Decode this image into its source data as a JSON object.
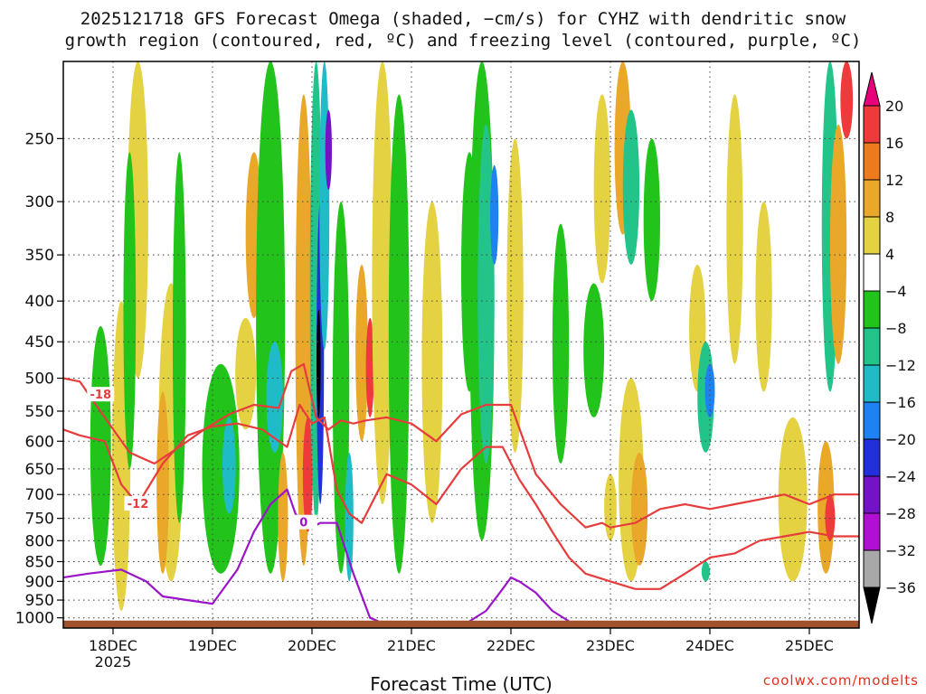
{
  "chart_data": {
    "type": "heatmap",
    "title_line1": "2025121718 GFS Forecast Omega (shaded, −cm/s) for CYHZ with dendritic snow",
    "title_line2": "growth region (contoured, red, ºC) and freezing level (contoured, purple, ºC)",
    "xlabel": "Forecast Time (UTC)",
    "credit": "coolwx.com/modelts",
    "y_axis_unit": "hPa",
    "y_log_scale": true,
    "ylim": [
      1030,
      200
    ],
    "y_ticks": [
      250,
      300,
      350,
      400,
      450,
      500,
      550,
      600,
      650,
      700,
      750,
      800,
      850,
      900,
      950,
      1000
    ],
    "y_tick_labels": [
      "250",
      "300",
      "350",
      "400",
      "450",
      "500",
      "550",
      "600",
      "650",
      "700",
      "750",
      "800",
      "850",
      "900",
      "950",
      "1000"
    ],
    "xlim_hours": [
      -6,
      186
    ],
    "x_ticks": [
      {
        "hour": 6,
        "label": "18DEC",
        "sublabel": "2025"
      },
      {
        "hour": 30,
        "label": "19DEC",
        "sublabel": ""
      },
      {
        "hour": 54,
        "label": "20DEC",
        "sublabel": ""
      },
      {
        "hour": 78,
        "label": "21DEC",
        "sublabel": ""
      },
      {
        "hour": 102,
        "label": "22DEC",
        "sublabel": ""
      },
      {
        "hour": 126,
        "label": "23DEC",
        "sublabel": ""
      },
      {
        "hour": 150,
        "label": "24DEC",
        "sublabel": ""
      },
      {
        "hour": 174,
        "label": "25DEC",
        "sublabel": ""
      }
    ],
    "grid": true,
    "colorbar": {
      "labels": [
        "20",
        "16",
        "12",
        "8",
        "4",
        "−4",
        "−8",
        "−12",
        "−16",
        "−20",
        "−24",
        "−28",
        "−32",
        "−36"
      ],
      "bins": [
        {
          "range": "> 20",
          "color": "#e8007a"
        },
        {
          "range": "16 to 20",
          "color": "#ee3a3a"
        },
        {
          "range": "12 to 16",
          "color": "#ee7a1e"
        },
        {
          "range": "8 to 12",
          "color": "#eaa82a"
        },
        {
          "range": "4 to 8",
          "color": "#e5d242"
        },
        {
          "range": "-4 to 4",
          "color": "#ffffff"
        },
        {
          "range": "-8 to -4",
          "color": "#22c41c"
        },
        {
          "range": "-12 to -8",
          "color": "#22c48a"
        },
        {
          "range": "-16 to -12",
          "color": "#1fbcc8"
        },
        {
          "range": "-20 to -16",
          "color": "#1e82f2"
        },
        {
          "range": "-24 to -20",
          "color": "#2230dc"
        },
        {
          "range": "-28 to -24",
          "color": "#7412c8"
        },
        {
          "range": "-32 to -28",
          "color": "#b20fd4"
        },
        {
          "range": "-36 to -32",
          "color": "#a8a8a8"
        },
        {
          "range": "< -36",
          "color": "#000000"
        }
      ]
    },
    "omega_regions": [
      {
        "hour": 8,
        "p_top": 400,
        "p_bot": 980,
        "hw": 2.2,
        "value": 6
      },
      {
        "hour": 12,
        "p_top": 200,
        "p_bot": 500,
        "hw": 2.5,
        "value": 5
      },
      {
        "hour": 3,
        "p_top": 430,
        "p_bot": 860,
        "hw": 2.5,
        "value": -7
      },
      {
        "hour": 10,
        "p_top": 260,
        "p_bot": 650,
        "hw": 1.5,
        "value": -6
      },
      {
        "hour": 20,
        "p_top": 380,
        "p_bot": 900,
        "hw": 3.0,
        "value": 8
      },
      {
        "hour": 18,
        "p_top": 520,
        "p_bot": 880,
        "hw": 1.5,
        "value": 10
      },
      {
        "hour": 22,
        "p_top": 260,
        "p_bot": 760,
        "hw": 1.6,
        "value": -8
      },
      {
        "hour": 32,
        "p_top": 480,
        "p_bot": 880,
        "hw": 4.5,
        "value": -8
      },
      {
        "hour": 34,
        "p_top": 560,
        "p_bot": 740,
        "hw": 1.6,
        "value": -13
      },
      {
        "hour": 40,
        "p_top": 260,
        "p_bot": 420,
        "hw": 2.0,
        "value": 10
      },
      {
        "hour": 38,
        "p_top": 420,
        "p_bot": 580,
        "hw": 2.5,
        "value": 6
      },
      {
        "hour": 44,
        "p_top": 200,
        "p_bot": 880,
        "hw": 3.5,
        "value": -7
      },
      {
        "hour": 45,
        "p_top": 450,
        "p_bot": 620,
        "hw": 2.0,
        "value": -14
      },
      {
        "hour": 47,
        "p_top": 620,
        "p_bot": 900,
        "hw": 1.2,
        "value": 10
      },
      {
        "hour": 52,
        "p_top": 220,
        "p_bot": 860,
        "hw": 2.0,
        "value": 9
      },
      {
        "hour": 53,
        "p_top": 560,
        "p_bot": 780,
        "hw": 1.2,
        "value": 18
      },
      {
        "hour": 55,
        "p_top": 200,
        "p_bot": 760,
        "hw": 1.5,
        "value": -10
      },
      {
        "hour": 56,
        "p_top": 300,
        "p_bot": 720,
        "hw": 0.9,
        "value": -22
      },
      {
        "hour": 55.6,
        "p_top": 410,
        "p_bot": 560,
        "hw": 0.5,
        "value": -40
      },
      {
        "hour": 57,
        "p_top": 200,
        "p_bot": 460,
        "hw": 1.2,
        "value": -14
      },
      {
        "hour": 58,
        "p_top": 230,
        "p_bot": 290,
        "hw": 0.8,
        "value": -26
      },
      {
        "hour": 61,
        "p_top": 300,
        "p_bot": 880,
        "hw": 2.0,
        "value": -8
      },
      {
        "hour": 63,
        "p_top": 620,
        "p_bot": 900,
        "hw": 1.0,
        "value": -14
      },
      {
        "hour": 66,
        "p_top": 360,
        "p_bot": 600,
        "hw": 1.5,
        "value": 12
      },
      {
        "hour": 68,
        "p_top": 420,
        "p_bot": 560,
        "hw": 1.0,
        "value": 18
      },
      {
        "hour": 71,
        "p_top": 200,
        "p_bot": 720,
        "hw": 2.5,
        "value": 6
      },
      {
        "hour": 75,
        "p_top": 220,
        "p_bot": 880,
        "hw": 2.5,
        "value": -7
      },
      {
        "hour": 83,
        "p_top": 300,
        "p_bot": 760,
        "hw": 2.5,
        "value": 5
      },
      {
        "hour": 92,
        "p_top": 260,
        "p_bot": 520,
        "hw": 2.0,
        "value": -7
      },
      {
        "hour": 95,
        "p_top": 200,
        "p_bot": 800,
        "hw": 3.0,
        "value": -8
      },
      {
        "hour": 96,
        "p_top": 240,
        "p_bot": 640,
        "hw": 2.0,
        "value": -12
      },
      {
        "hour": 98,
        "p_top": 270,
        "p_bot": 360,
        "hw": 1.0,
        "value": -18
      },
      {
        "hour": 103,
        "p_top": 250,
        "p_bot": 620,
        "hw": 2.0,
        "value": 5
      },
      {
        "hour": 114,
        "p_top": 320,
        "p_bot": 640,
        "hw": 2.0,
        "value": -6
      },
      {
        "hour": 122,
        "p_top": 380,
        "p_bot": 560,
        "hw": 2.5,
        "value": -6
      },
      {
        "hour": 124,
        "p_top": 220,
        "p_bot": 380,
        "hw": 2.0,
        "value": 5
      },
      {
        "hour": 126,
        "p_top": 660,
        "p_bot": 800,
        "hw": 1.5,
        "value": 5
      },
      {
        "hour": 129,
        "p_top": 200,
        "p_bot": 330,
        "hw": 2.0,
        "value": 12
      },
      {
        "hour": 131,
        "p_top": 230,
        "p_bot": 360,
        "hw": 2.0,
        "value": -12
      },
      {
        "hour": 131,
        "p_top": 500,
        "p_bot": 900,
        "hw": 3.0,
        "value": 5
      },
      {
        "hour": 133,
        "p_top": 620,
        "p_bot": 860,
        "hw": 2.0,
        "value": 10
      },
      {
        "hour": 136,
        "p_top": 250,
        "p_bot": 400,
        "hw": 2.0,
        "value": -6
      },
      {
        "hour": 147,
        "p_top": 360,
        "p_bot": 520,
        "hw": 2.0,
        "value": 5
      },
      {
        "hour": 149,
        "p_top": 450,
        "p_bot": 620,
        "hw": 2.0,
        "value": -10
      },
      {
        "hour": 150,
        "p_top": 480,
        "p_bot": 560,
        "hw": 1.2,
        "value": -17
      },
      {
        "hour": 149,
        "p_top": 850,
        "p_bot": 900,
        "hw": 1.0,
        "value": -12
      },
      {
        "hour": 156,
        "p_top": 220,
        "p_bot": 480,
        "hw": 2.0,
        "value": 5
      },
      {
        "hour": 163,
        "p_top": 300,
        "p_bot": 520,
        "hw": 2.0,
        "value": 5
      },
      {
        "hour": 170,
        "p_top": 560,
        "p_bot": 900,
        "hw": 3.5,
        "value": 5
      },
      {
        "hour": 178,
        "p_top": 600,
        "p_bot": 880,
        "hw": 2.0,
        "value": 10
      },
      {
        "hour": 179,
        "p_top": 700,
        "p_bot": 800,
        "hw": 1.2,
        "value": 17
      },
      {
        "hour": 179,
        "p_top": 200,
        "p_bot": 520,
        "hw": 2.0,
        "value": -10
      },
      {
        "hour": 181,
        "p_top": 240,
        "p_bot": 480,
        "hw": 2.0,
        "value": 10
      },
      {
        "hour": 183,
        "p_top": 200,
        "p_bot": 250,
        "hw": 1.5,
        "value": 17
      }
    ],
    "dgz_contours": [
      {
        "label": "-18",
        "label_hour": 3,
        "label_p": 525,
        "hours": [
          -6,
          -2,
          4,
          10,
          16,
          22,
          28,
          34,
          40,
          46,
          49,
          52,
          55,
          58,
          61,
          64,
          67,
          72,
          78,
          84,
          90,
          96,
          102,
          108,
          114,
          120,
          124,
          126,
          132,
          138,
          144,
          150,
          156,
          162,
          168,
          174,
          180,
          186
        ],
        "pressures": [
          500,
          505,
          560,
          620,
          640,
          610,
          580,
          555,
          540,
          545,
          490,
          480,
          560,
          580,
          565,
          570,
          565,
          560,
          570,
          600,
          555,
          540,
          540,
          660,
          720,
          770,
          760,
          770,
          760,
          730,
          720,
          730,
          720,
          710,
          700,
          720,
          700,
          700
        ]
      },
      {
        "label": "-12",
        "label_hour": 12,
        "label_p": 720,
        "hours": [
          -6,
          -2,
          4,
          8,
          12,
          18,
          24,
          30,
          36,
          42,
          48,
          51,
          54,
          57,
          60,
          63,
          66,
          72,
          78,
          84,
          90,
          96,
          100,
          104,
          108,
          112,
          116,
          120,
          126,
          132,
          138,
          144,
          150,
          156,
          162,
          168,
          174,
          180,
          186
        ],
        "pressures": [
          580,
          590,
          600,
          680,
          720,
          640,
          590,
          575,
          570,
          580,
          610,
          540,
          570,
          560,
          690,
          740,
          760,
          660,
          680,
          720,
          650,
          610,
          610,
          670,
          720,
          780,
          840,
          880,
          900,
          920,
          920,
          880,
          840,
          830,
          800,
          790,
          780,
          790,
          790
        ]
      }
    ],
    "freezing_level_contours": [
      {
        "label": "0",
        "label_hour": 52,
        "label_p": 760,
        "hours": [
          -6,
          0,
          8,
          14,
          18,
          24,
          30,
          36,
          40,
          44,
          48,
          50,
          52,
          54,
          56,
          60,
          64,
          68,
          70
        ],
        "pressures": [
          890,
          880,
          870,
          900,
          940,
          950,
          960,
          870,
          780,
          720,
          690,
          740,
          760,
          770,
          760,
          760,
          880,
          1000,
          1010
        ]
      },
      {
        "label": "",
        "label_hour": 0,
        "label_p": 0,
        "hours": [
          92,
          96,
          100,
          102,
          104,
          108,
          112,
          116
        ],
        "pressures": [
          1010,
          980,
          920,
          890,
          900,
          930,
          980,
          1010
        ]
      }
    ]
  }
}
